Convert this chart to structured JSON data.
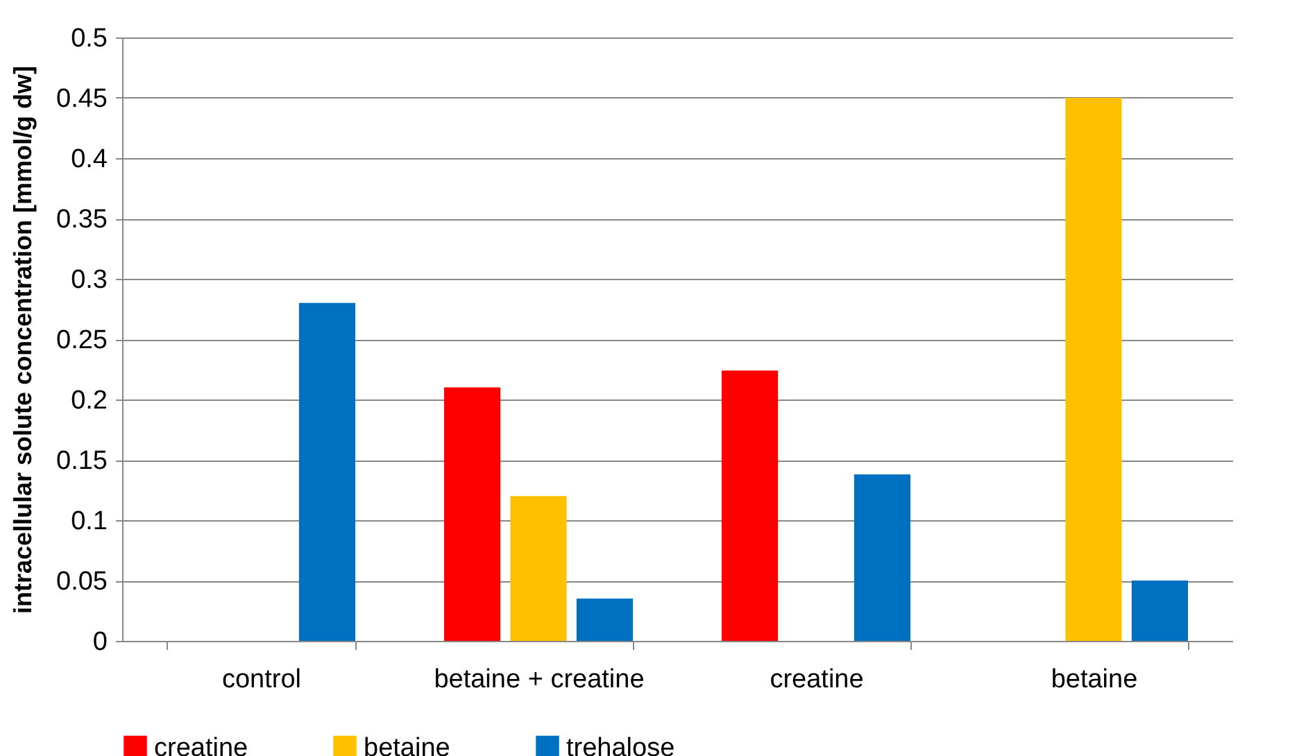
{
  "chart_data": {
    "type": "bar",
    "ylabel": "intracellular solute concentration [mmol/g dw]",
    "categories": [
      "control",
      "betaine + creatine",
      "creatine",
      "betaine"
    ],
    "series": [
      {
        "name": "creatine",
        "color": "#ff0000",
        "values": [
          null,
          0.21,
          0.224,
          null
        ]
      },
      {
        "name": "betaine",
        "color": "#ffc000",
        "values": [
          null,
          0.12,
          null,
          0.45
        ]
      },
      {
        "name": "trehalose",
        "color": "#0070c0",
        "values": [
          0.28,
          0.035,
          0.138,
          0.05
        ]
      }
    ],
    "ylim": [
      0,
      0.5
    ],
    "yticks": [
      0,
      0.05,
      0.1,
      0.15,
      0.2,
      0.25,
      0.3,
      0.35,
      0.4,
      0.45,
      0.5
    ],
    "grid": "y",
    "legend": "bottom"
  }
}
